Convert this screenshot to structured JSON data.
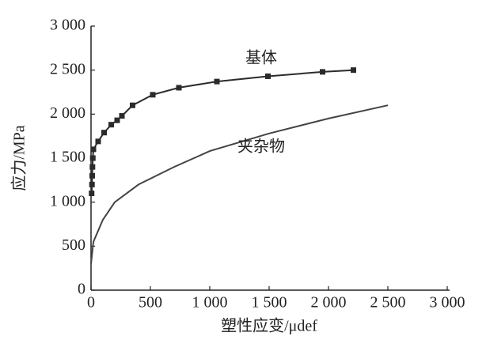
{
  "chart_data": {
    "type": "line",
    "x_label": "塑性应变/μdef",
    "y_label": "应力/MPa",
    "xlim": [
      0,
      3000
    ],
    "ylim": [
      0,
      3000
    ],
    "xticks": [
      0,
      500,
      {
        "value": 1000,
        "label": "1 000"
      },
      {
        "value": 1500,
        "label": "1 500"
      },
      {
        "value": 2000,
        "label": "2 000"
      },
      {
        "value": 2500,
        "label": "2 500"
      },
      {
        "value": 3000,
        "label": "3 000"
      }
    ],
    "yticks": [
      0,
      500,
      {
        "value": 1000,
        "label": "1 000"
      },
      {
        "value": 1500,
        "label": "1 500"
      },
      {
        "value": 2000,
        "label": "2 000"
      },
      {
        "value": 2500,
        "label": "2 500"
      },
      {
        "value": 3000,
        "label": "3 000"
      }
    ],
    "grid": false,
    "series": [
      {
        "name": "基体",
        "color": "#2b2b2b",
        "marker": "square",
        "x": [
          5,
          8,
          10,
          12,
          15,
          20,
          60,
          110,
          170,
          220,
          260,
          350,
          520,
          740,
          1060,
          1490,
          1950,
          2210
        ],
        "values": [
          1100,
          1200,
          1300,
          1400,
          1500,
          1600,
          1690,
          1790,
          1880,
          1930,
          1980,
          2100,
          2220,
          2300,
          2370,
          2430,
          2480,
          2500
        ]
      },
      {
        "name": "夹杂物",
        "color": "#444444",
        "marker": "none",
        "x": [
          0,
          20,
          100,
          200,
          400,
          700,
          1000,
          1500,
          2000,
          2500
        ],
        "values": [
          300,
          550,
          800,
          1000,
          1200,
          1400,
          1580,
          1780,
          1950,
          2100
        ]
      }
    ]
  }
}
